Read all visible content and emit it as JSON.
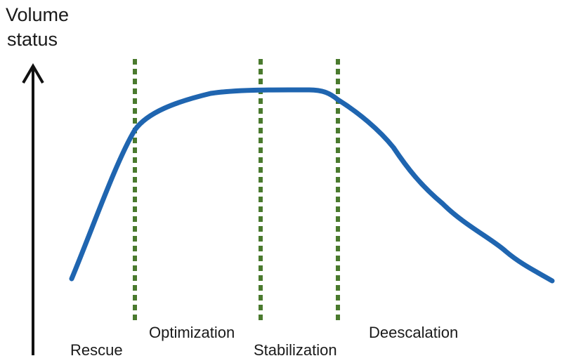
{
  "axis_label": [
    "Volume",
    "status"
  ],
  "phases": [
    "Rescue",
    "Optimization",
    "Stabilization",
    "Deescalation"
  ]
}
